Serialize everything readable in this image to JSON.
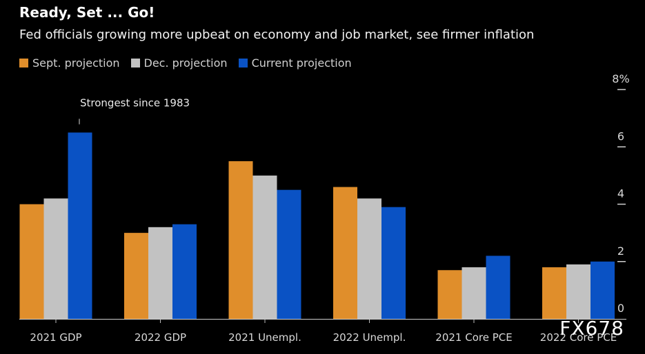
{
  "chart_data": {
    "type": "bar",
    "title": "Ready, Set ... Go!",
    "subtitle": "Fed officials growing more upbeat on economy and job market, see firmer inflation",
    "xlabel": "",
    "ylabel": "",
    "ylim": [
      0,
      8
    ],
    "yticks": [
      0,
      2,
      4,
      6,
      8
    ],
    "ytick_labels": [
      "0",
      "2",
      "4",
      "6",
      "8%"
    ],
    "y_axis_side": "right",
    "grid": false,
    "legend_position": "top-left",
    "categories": [
      "2021 GDP",
      "2022 GDP",
      "2021 Unempl.",
      "2022 Unempl.",
      "2021 Core PCE",
      "2022 Core PCE"
    ],
    "series": [
      {
        "name": "Sept. projection",
        "color": "#e08e2b",
        "values": [
          4.0,
          3.0,
          5.5,
          4.6,
          1.7,
          1.8
        ]
      },
      {
        "name": "Dec. projection",
        "color": "#c2c2c2",
        "values": [
          4.2,
          3.2,
          5.0,
          4.2,
          1.8,
          1.9
        ]
      },
      {
        "name": "Current projection",
        "color": "#0a52c4",
        "values": [
          6.5,
          3.3,
          4.5,
          3.9,
          2.2,
          2.0
        ]
      }
    ],
    "annotations": [
      {
        "text": "Strongest since 1983",
        "category": "2021 GDP",
        "series": "Current projection"
      }
    ]
  },
  "watermark": "FX678"
}
